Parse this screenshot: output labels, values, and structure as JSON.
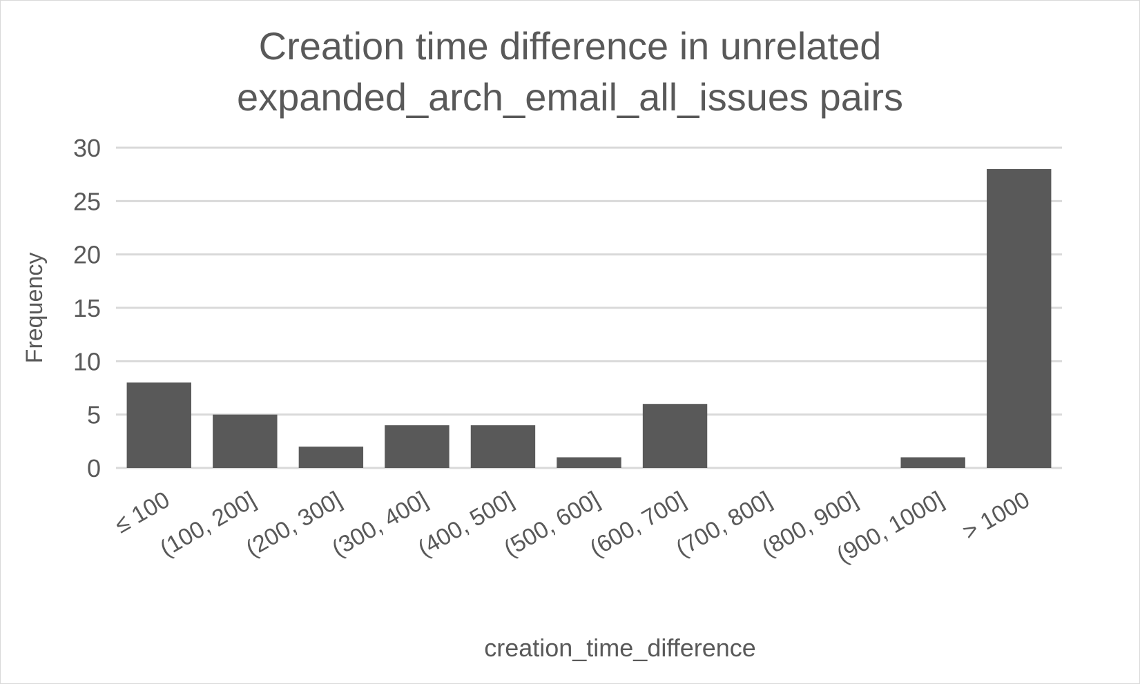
{
  "chart_data": {
    "type": "bar",
    "title_lines": [
      "Creation time difference in unrelated",
      "expanded_arch_email_all_issues pairs"
    ],
    "title": "Creation time difference in unrelated expanded_arch_email_all_issues pairs",
    "xlabel": "creation_time_difference",
    "ylabel": "Frequency",
    "categories": [
      "≤ 100",
      "(100, 200]",
      "(200, 300]",
      "(300, 400]",
      "(400, 500]",
      "(500, 600]",
      "(600, 700]",
      "(700, 800]",
      "(800, 900]",
      "(900, 1000]",
      "> 1000"
    ],
    "values": [
      8,
      5,
      2,
      4,
      4,
      1,
      6,
      0,
      0,
      1,
      28
    ],
    "ylim": [
      0,
      30
    ],
    "yticks": [
      "0",
      "5",
      "10",
      "15",
      "20",
      "25",
      "30"
    ],
    "grid": true,
    "legend": false,
    "bar_color": "#595959",
    "grid_color": "#d9d9d9",
    "text_color": "#595959"
  }
}
